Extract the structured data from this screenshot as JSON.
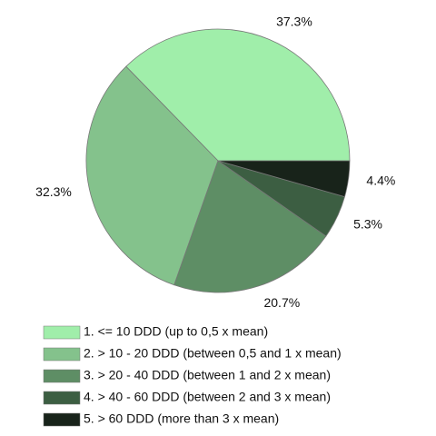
{
  "chart_data": {
    "type": "pie",
    "categories": [
      "1. <= 10 DDD (up to 0,5 x mean)",
      "2. > 10 - 20 DDD (between 0,5 and 1 x mean)",
      "3. > 20 - 40 DDD (between 1 and 2 x mean)",
      "4. > 40 - 60 DDD (between 2 and 3 x mean)",
      "5. > 60 DDD (more than 3 x mean)"
    ],
    "values": [
      37.3,
      32.3,
      20.7,
      5.3,
      4.4
    ],
    "value_labels": [
      "37.3%",
      "32.3%",
      "20.7%",
      "5.3%",
      "4.4%"
    ],
    "colors": [
      "#a0eeaa",
      "#84c28c",
      "#5e8e65",
      "#3c5e42",
      "#18231a"
    ],
    "legend": "bottom"
  }
}
